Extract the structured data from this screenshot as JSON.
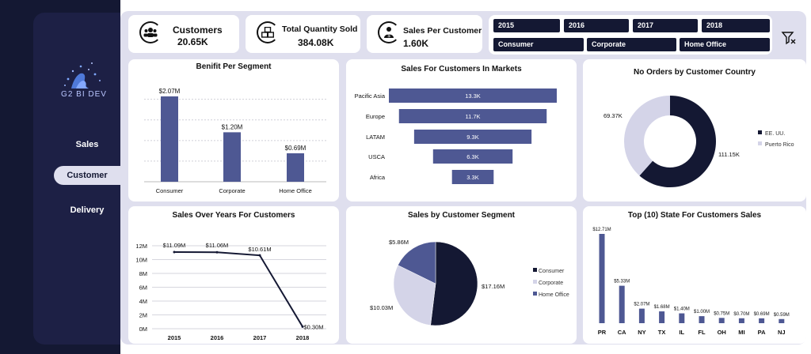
{
  "brand": {
    "logo_text": "G2 BI DEV"
  },
  "nav": {
    "items": [
      "Sales",
      "Customer",
      "Delivery"
    ],
    "active": "Customer"
  },
  "kpis": [
    {
      "title": "Customers",
      "value": "20.65K",
      "icon": "users-icon"
    },
    {
      "title": "Total Quantity Sold",
      "value": "384.08K",
      "icon": "boxes-icon"
    },
    {
      "title": "Sales Per Customer",
      "value": "1.60K",
      "icon": "customer-money-icon"
    }
  ],
  "filters": {
    "years": [
      "2015",
      "2016",
      "2017",
      "2018"
    ],
    "segments": [
      "Consumer",
      "Corporate",
      "Home Office"
    ],
    "filter_icon": "filter-clear-icon"
  },
  "colors": {
    "navy": "#141833",
    "slate": "#4e5893",
    "lavender": "#d4d4e8"
  },
  "charts": {
    "benefit": {
      "title": "Benifit Per Segment"
    },
    "markets": {
      "title": "Sales For Customers In Markets"
    },
    "country": {
      "title": "No Orders by Customer Country"
    },
    "years": {
      "title": "Sales Over Years For Customers"
    },
    "segment": {
      "title": "Sales by Customer Segment"
    },
    "states": {
      "title": "Top (10) State For Customers Sales"
    }
  },
  "chart_data": [
    {
      "id": "benefit",
      "type": "bar",
      "title": "Benifit Per Segment",
      "categories": [
        "Consumer",
        "Corporate",
        "Home Office"
      ],
      "values": [
        2.07,
        1.2,
        0.69
      ],
      "labels": [
        "$2.07M",
        "$1.20M",
        "$0.69M"
      ],
      "grid": true
    },
    {
      "id": "markets",
      "type": "bar",
      "orientation": "horizontal-funnel",
      "title": "Sales For Customers In Markets",
      "categories": [
        "Pacific Asia",
        "Europe",
        "LATAM",
        "USCA",
        "Africa"
      ],
      "values": [
        13.3,
        11.7,
        9.3,
        6.3,
        3.3
      ],
      "labels": [
        "13.3K",
        "11.7K",
        "9.3K",
        "6.3K",
        "3.3K"
      ]
    },
    {
      "id": "country",
      "type": "pie",
      "donut": true,
      "title": "No Orders by Customer Country",
      "categories": [
        "EE. UU.",
        "Puerto Rico"
      ],
      "values": [
        111.15,
        69.37
      ],
      "labels": [
        "111.15K",
        "69.37K"
      ],
      "legend": "right"
    },
    {
      "id": "years",
      "type": "line",
      "title": "Sales Over Years For Customers",
      "categories": [
        "2015",
        "2016",
        "2017",
        "2018"
      ],
      "values": [
        11.09,
        11.06,
        10.61,
        0.3
      ],
      "labels": [
        "$11.09M",
        "$11.06M",
        "$10.61M",
        "$0.30M"
      ],
      "yticks": [
        "0M",
        "2M",
        "4M",
        "6M",
        "8M",
        "10M",
        "12M"
      ],
      "ylim": [
        0,
        12
      ],
      "grid": true
    },
    {
      "id": "segment",
      "type": "pie",
      "title": "Sales by Customer Segment",
      "categories": [
        "Consumer",
        "Corporate",
        "Home Office"
      ],
      "values": [
        17.16,
        10.03,
        5.86
      ],
      "labels": [
        "$17.16M",
        "$10.03M",
        "$5.86M"
      ],
      "legend": "right"
    },
    {
      "id": "states",
      "type": "bar",
      "title": "Top (10) State For Customers Sales",
      "categories": [
        "PR",
        "CA",
        "NY",
        "TX",
        "IL",
        "FL",
        "OH",
        "MI",
        "PA",
        "NJ"
      ],
      "values": [
        12.71,
        5.33,
        2.07,
        1.68,
        1.4,
        1.0,
        0.75,
        0.7,
        0.69,
        0.59
      ],
      "labels": [
        "$12.71M",
        "$5.33M",
        "$2.07M",
        "$1.68M",
        "$1.40M",
        "$1.00M",
        "$0.75M",
        "$0.70M",
        "$0.69M",
        "$0.59M"
      ]
    }
  ]
}
